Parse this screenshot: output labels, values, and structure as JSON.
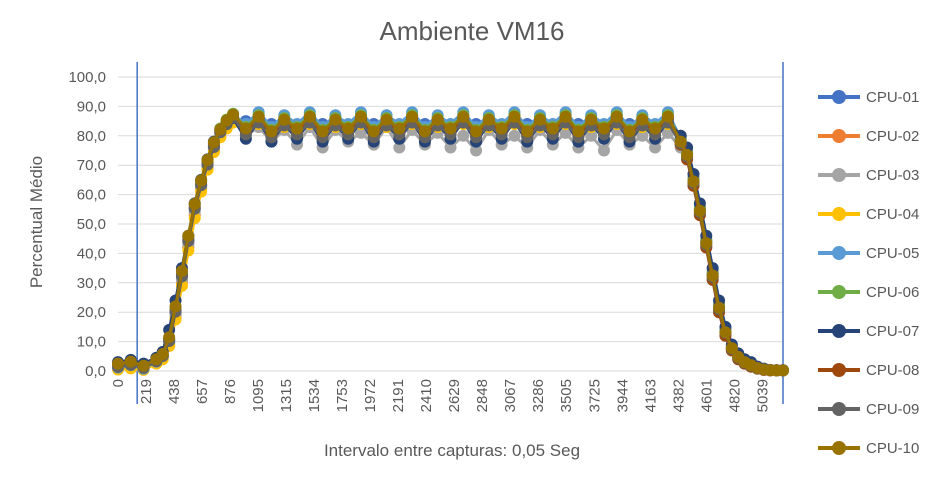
{
  "chart_data": {
    "type": "line",
    "title": "Ambiente VM16",
    "xlabel": "Intervalo entre capturas: 0,05 Seg",
    "ylabel": "Percentual Médio",
    "ylim": [
      0,
      100
    ],
    "xlim": [
      0,
      5200
    ],
    "y_ticks": [
      "0,0",
      "10,0",
      "20,0",
      "30,0",
      "40,0",
      "50,0",
      "60,0",
      "70,0",
      "80,0",
      "90,0",
      "100,0"
    ],
    "x_ticks": [
      "0",
      "219",
      "438",
      "657",
      "876",
      "1095",
      "1315",
      "1534",
      "1753",
      "1972",
      "2191",
      "2410",
      "2629",
      "2848",
      "3067",
      "3286",
      "3505",
      "3725",
      "3944",
      "4163",
      "4382",
      "4601",
      "4820",
      "5039"
    ],
    "x_tick_values": [
      0,
      219,
      438,
      657,
      876,
      1095,
      1315,
      1534,
      1753,
      1972,
      2191,
      2410,
      2629,
      2848,
      3067,
      3286,
      3505,
      3725,
      3944,
      4163,
      4382,
      4601,
      4820,
      5039
    ],
    "vertical_markers": [
      150,
      5200
    ],
    "marker_color": "#4472c4",
    "grid": true,
    "legend_position": "right",
    "x": [
      0,
      100,
      200,
      300,
      350,
      400,
      450,
      500,
      550,
      600,
      650,
      700,
      750,
      800,
      850,
      900,
      1000,
      1100,
      1200,
      1300,
      1400,
      1500,
      1600,
      1700,
      1800,
      1900,
      2000,
      2100,
      2200,
      2300,
      2400,
      2500,
      2600,
      2700,
      2800,
      2900,
      3000,
      3100,
      3200,
      3300,
      3400,
      3500,
      3600,
      3700,
      3800,
      3900,
      4000,
      4100,
      4200,
      4300,
      4400,
      4450,
      4500,
      4550,
      4600,
      4650,
      4700,
      4750,
      4800,
      4850,
      4900,
      4950,
      5000,
      5050,
      5100,
      5150,
      5200
    ],
    "series": [
      {
        "name": "CPU-01",
        "color": "#4472c4",
        "values": [
          1.5,
          2.2,
          1.0,
          3.5,
          5.0,
          10.0,
          20.0,
          32.0,
          44.0,
          55.0,
          63.0,
          70.0,
          76.0,
          81.0,
          84.0,
          86.0,
          85.0,
          86.0,
          84.0,
          85.0,
          83.0,
          86.0,
          84.0,
          85.0,
          83.0,
          86.0,
          84.0,
          85.0,
          83.0,
          86.0,
          84.0,
          85.0,
          83.0,
          86.0,
          84.0,
          85.0,
          83.0,
          86.0,
          84.0,
          85.0,
          83.0,
          86.0,
          84.0,
          85.0,
          83.0,
          86.0,
          84.0,
          85.0,
          83.0,
          86.0,
          78.0,
          74.0,
          65.0,
          55.0,
          44.0,
          33.0,
          22.0,
          14.0,
          8.0,
          5.0,
          3.0,
          2.0,
          1.0,
          0.5,
          0.3,
          0.2,
          0.2
        ]
      },
      {
        "name": "CPU-02",
        "color": "#ed7d31",
        "values": [
          0.8,
          1.2,
          0.6,
          2.8,
          4.5,
          9.0,
          18.0,
          30.0,
          42.0,
          53.0,
          62.0,
          69.0,
          75.0,
          80.0,
          83.0,
          85.0,
          82.0,
          87.0,
          81.0,
          86.0,
          82.0,
          87.0,
          81.0,
          86.0,
          82.0,
          87.0,
          81.0,
          86.0,
          82.0,
          87.0,
          81.0,
          86.0,
          82.0,
          87.0,
          81.0,
          86.0,
          82.0,
          87.0,
          81.0,
          86.0,
          82.0,
          87.0,
          81.0,
          86.0,
          82.0,
          87.0,
          81.0,
          86.0,
          82.0,
          87.0,
          77.0,
          73.0,
          64.0,
          54.0,
          43.0,
          32.0,
          21.0,
          13.0,
          7.0,
          4.5,
          2.5,
          1.5,
          0.8,
          0.4,
          0.2,
          0.2,
          0.2
        ]
      },
      {
        "name": "CPU-03",
        "color": "#a5a5a5",
        "values": [
          1.0,
          1.8,
          0.9,
          3.0,
          4.8,
          9.5,
          19.0,
          31.0,
          43.0,
          54.0,
          62.5,
          69.5,
          75.5,
          80.5,
          83.5,
          85.5,
          80.0,
          83.0,
          78.0,
          82.0,
          77.0,
          83.0,
          76.0,
          82.0,
          78.0,
          81.0,
          77.0,
          83.0,
          76.0,
          82.0,
          77.0,
          81.0,
          76.0,
          80.0,
          75.0,
          82.0,
          77.0,
          80.0,
          76.0,
          82.0,
          77.0,
          81.0,
          76.0,
          80.0,
          75.0,
          82.0,
          77.0,
          80.0,
          76.0,
          81.0,
          76.0,
          72.0,
          63.0,
          53.0,
          42.0,
          31.0,
          20.0,
          12.0,
          7.0,
          4.0,
          2.5,
          1.5,
          0.8,
          0.4,
          0.2,
          0.2,
          0.2
        ]
      },
      {
        "name": "CPU-04",
        "color": "#ffc000",
        "values": [
          0.5,
          0.9,
          0.4,
          2.5,
          4.0,
          8.5,
          17.5,
          29.0,
          41.0,
          52.0,
          61.0,
          68.5,
          74.5,
          79.5,
          82.5,
          84.5,
          83.0,
          84.0,
          80.0,
          83.0,
          81.0,
          84.0,
          80.0,
          83.0,
          81.0,
          84.0,
          80.0,
          83.0,
          81.0,
          84.0,
          80.0,
          83.0,
          81.0,
          84.0,
          80.0,
          83.0,
          81.0,
          84.0,
          80.0,
          83.0,
          81.0,
          84.0,
          80.0,
          83.0,
          81.0,
          84.0,
          80.0,
          83.0,
          81.0,
          84.0,
          80.0,
          75.0,
          66.0,
          56.0,
          45.0,
          34.0,
          23.0,
          14.0,
          8.0,
          5.0,
          3.0,
          2.0,
          1.0,
          0.5,
          0.3,
          0.2,
          0.2
        ]
      },
      {
        "name": "CPU-05",
        "color": "#5b9bd5",
        "values": [
          1.2,
          2.0,
          0.8,
          3.2,
          5.2,
          10.5,
          21.0,
          33.0,
          45.0,
          56.0,
          64.0,
          71.0,
          77.0,
          82.0,
          85.0,
          87.0,
          84.0,
          88.0,
          83.0,
          87.0,
          84.0,
          88.0,
          83.0,
          87.0,
          84.0,
          88.0,
          83.0,
          87.0,
          84.0,
          88.0,
          83.0,
          87.0,
          84.0,
          88.0,
          83.0,
          87.0,
          84.0,
          88.0,
          83.0,
          87.0,
          84.0,
          88.0,
          83.0,
          87.0,
          84.0,
          88.0,
          83.0,
          87.0,
          84.0,
          88.0,
          79.0,
          74.5,
          65.5,
          55.5,
          44.5,
          33.5,
          22.5,
          14.5,
          8.5,
          5.5,
          3.5,
          2.5,
          1.2,
          0.6,
          0.3,
          0.2,
          0.2
        ]
      },
      {
        "name": "CPU-06",
        "color": "#70ad47",
        "values": [
          2.0,
          2.8,
          1.5,
          3.8,
          5.5,
          11.0,
          21.5,
          33.5,
          45.5,
          56.5,
          64.5,
          71.5,
          77.5,
          82.5,
          85.5,
          87.5,
          83.0,
          87.0,
          82.0,
          86.0,
          83.0,
          87.0,
          82.0,
          86.0,
          83.0,
          87.0,
          82.0,
          86.0,
          83.0,
          87.0,
          82.0,
          86.0,
          83.0,
          87.0,
          82.0,
          86.0,
          83.0,
          87.0,
          82.0,
          86.0,
          83.0,
          87.0,
          82.0,
          86.0,
          83.0,
          87.0,
          82.0,
          86.0,
          83.0,
          87.0,
          78.5,
          74.0,
          65.0,
          55.0,
          44.0,
          33.0,
          22.0,
          13.5,
          7.5,
          4.5,
          3.0,
          2.0,
          1.0,
          0.5,
          0.3,
          0.2,
          0.2
        ]
      },
      {
        "name": "CPU-07",
        "color": "#264478",
        "values": [
          3.0,
          3.8,
          2.5,
          4.5,
          6.5,
          14.0,
          24.0,
          35.0,
          46.0,
          57.0,
          65.0,
          72.0,
          78.0,
          82.0,
          84.0,
          86.0,
          79.0,
          85.0,
          78.0,
          84.0,
          79.0,
          85.0,
          78.0,
          84.0,
          79.0,
          85.0,
          78.0,
          84.0,
          79.0,
          85.0,
          78.0,
          84.0,
          79.0,
          85.0,
          78.0,
          84.0,
          79.0,
          85.0,
          78.0,
          84.0,
          79.0,
          85.0,
          78.0,
          84.0,
          79.0,
          85.0,
          78.0,
          84.0,
          79.0,
          85.0,
          80.0,
          76.0,
          67.0,
          57.0,
          46.0,
          35.0,
          24.0,
          15.0,
          9.0,
          6.0,
          4.0,
          3.0,
          1.5,
          0.8,
          0.4,
          0.3,
          0.3
        ]
      },
      {
        "name": "CPU-08",
        "color": "#9e480e",
        "values": [
          1.8,
          2.5,
          1.2,
          3.6,
          5.3,
          10.8,
          20.5,
          32.5,
          44.5,
          55.5,
          63.5,
          70.5,
          76.5,
          81.5,
          84.5,
          86.5,
          81.0,
          86.0,
          80.0,
          85.0,
          81.0,
          86.0,
          80.0,
          85.0,
          81.0,
          86.0,
          80.0,
          85.0,
          81.0,
          86.0,
          80.0,
          85.0,
          81.0,
          86.0,
          80.0,
          85.0,
          81.0,
          86.0,
          80.0,
          85.0,
          81.0,
          86.0,
          80.0,
          85.0,
          81.0,
          86.0,
          80.0,
          85.0,
          81.0,
          86.0,
          77.0,
          72.0,
          63.0,
          53.0,
          42.0,
          31.0,
          20.0,
          12.0,
          7.0,
          4.0,
          2.5,
          1.5,
          0.8,
          0.4,
          0.2,
          0.2,
          0.2
        ]
      },
      {
        "name": "CPU-09",
        "color": "#636363",
        "values": [
          1.4,
          2.1,
          1.1,
          3.3,
          5.1,
          10.2,
          20.2,
          32.2,
          44.2,
          55.2,
          63.2,
          70.2,
          76.2,
          81.2,
          84.2,
          86.2,
          80.5,
          84.5,
          79.5,
          83.5,
          80.5,
          84.5,
          79.5,
          83.5,
          80.5,
          84.5,
          79.5,
          83.5,
          80.5,
          84.5,
          79.5,
          83.5,
          80.5,
          84.5,
          79.5,
          83.5,
          80.5,
          84.5,
          79.5,
          83.5,
          80.5,
          84.5,
          79.5,
          83.5,
          80.5,
          84.5,
          79.5,
          83.5,
          80.5,
          84.5,
          77.5,
          73.0,
          64.0,
          54.0,
          43.0,
          32.0,
          21.0,
          13.0,
          7.5,
          4.5,
          2.8,
          1.8,
          0.9,
          0.5,
          0.3,
          0.2,
          0.2
        ]
      },
      {
        "name": "CPU-10",
        "color": "#997300",
        "values": [
          2.5,
          3.2,
          1.8,
          4.0,
          5.8,
          11.5,
          22.0,
          34.0,
          46.0,
          56.8,
          64.8,
          71.8,
          77.8,
          82.2,
          85.2,
          87.2,
          82.5,
          86.5,
          81.5,
          85.5,
          82.5,
          86.5,
          81.5,
          85.5,
          82.5,
          86.5,
          81.5,
          85.5,
          82.5,
          86.5,
          81.5,
          85.5,
          82.5,
          86.5,
          81.5,
          85.5,
          82.5,
          86.5,
          81.5,
          85.5,
          82.5,
          86.5,
          81.5,
          85.5,
          82.5,
          86.5,
          81.5,
          85.5,
          82.5,
          86.5,
          78.0,
          73.5,
          64.5,
          54.5,
          43.5,
          32.5,
          21.5,
          13.2,
          7.8,
          4.8,
          3.0,
          2.0,
          1.0,
          0.5,
          0.3,
          0.2,
          0.2
        ]
      }
    ]
  }
}
